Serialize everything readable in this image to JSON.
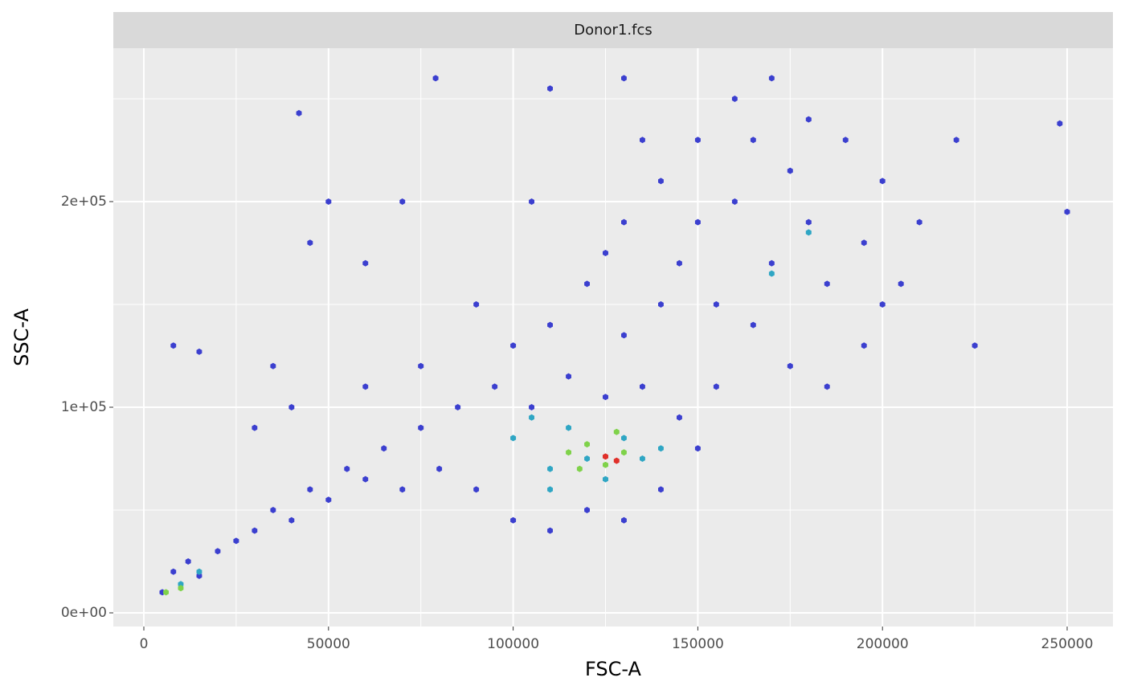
{
  "chart_data": {
    "type": "hexbin",
    "strip": "Donor1.fcs",
    "x_label": "FSC-A",
    "y_label": "SSC-A",
    "xlim": [
      -8268,
      262400
    ],
    "ylim": [
      -6640,
      274600
    ],
    "xticks": [
      0,
      50000,
      100000,
      150000,
      200000,
      250000
    ],
    "yticks": [
      {
        "value": 0,
        "label": "0e+00"
      },
      {
        "value": 100000,
        "label": "1e+05"
      },
      {
        "value": 200000,
        "label": "2e+05"
      }
    ],
    "xminor": [
      25000,
      75000,
      125000,
      175000,
      225000
    ],
    "yminor": [
      50000,
      150000,
      250000
    ],
    "grid": true,
    "series": [
      {
        "color": "#3b3fcf",
        "x": [
          5000,
          8000,
          12000,
          15000,
          20000,
          25000,
          30000,
          35000,
          40000,
          45000,
          50000,
          55000,
          60000,
          65000,
          70000,
          75000,
          80000,
          85000,
          90000,
          95000,
          100000,
          105000,
          110000,
          115000,
          120000,
          125000,
          130000,
          135000,
          140000,
          145000,
          150000,
          155000,
          100000,
          90000,
          120000,
          130000,
          140000,
          150000,
          160000,
          170000,
          180000,
          190000,
          200000,
          210000,
          205000,
          195000,
          185000,
          175000,
          165000,
          155000,
          160000,
          170000,
          180000,
          185000,
          175000,
          150000,
          145000,
          195000,
          200000,
          165000,
          60000,
          70000,
          50000,
          45000,
          42000,
          79000,
          110000,
          130000,
          225000,
          250000,
          248000,
          15000,
          8000,
          35000,
          220000,
          30000,
          40000,
          60000,
          75000,
          110000,
          130000,
          140000,
          125000,
          135000,
          105000
        ],
        "y": [
          10000,
          20000,
          25000,
          18000,
          30000,
          35000,
          40000,
          50000,
          45000,
          60000,
          55000,
          70000,
          65000,
          80000,
          60000,
          90000,
          70000,
          100000,
          60000,
          110000,
          45000,
          100000,
          40000,
          115000,
          50000,
          105000,
          45000,
          110000,
          60000,
          95000,
          80000,
          110000,
          130000,
          150000,
          160000,
          190000,
          210000,
          230000,
          250000,
          260000,
          240000,
          230000,
          210000,
          190000,
          160000,
          130000,
          110000,
          120000,
          140000,
          150000,
          200000,
          170000,
          190000,
          160000,
          215000,
          190000,
          170000,
          180000,
          150000,
          230000,
          170000,
          200000,
          200000,
          180000,
          243000,
          260000,
          255000,
          260000,
          130000,
          195000,
          238000,
          127000,
          130000,
          120000,
          230000,
          90000,
          100000,
          110000,
          120000,
          140000,
          135000,
          150000,
          175000,
          230000,
          200000
        ]
      },
      {
        "color": "#2fa6c4",
        "x": [
          10000,
          15000,
          100000,
          110000,
          115000,
          120000,
          125000,
          130000,
          135000,
          105000,
          140000,
          170000,
          180000,
          110000
        ],
        "y": [
          14000,
          20000,
          85000,
          70000,
          90000,
          75000,
          65000,
          85000,
          75000,
          95000,
          80000,
          165000,
          185000,
          60000
        ]
      },
      {
        "color": "#7fd24a",
        "x": [
          6000,
          10000,
          115000,
          120000,
          125000,
          130000,
          118000,
          128000
        ],
        "y": [
          10000,
          12000,
          78000,
          82000,
          72000,
          78000,
          70000,
          88000
        ]
      },
      {
        "color": "#e0302a",
        "x": [
          125000,
          128000
        ],
        "y": [
          76000,
          74000
        ]
      }
    ]
  }
}
